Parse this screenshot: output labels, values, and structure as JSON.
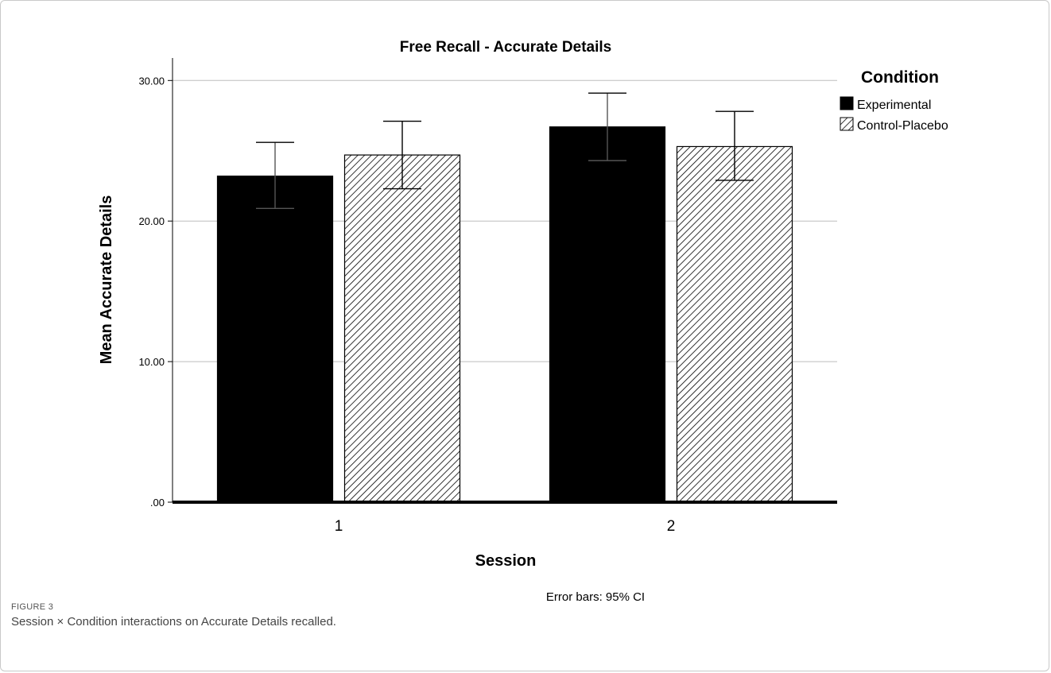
{
  "figure": {
    "label": "FIGURE 3",
    "caption": "Session × Condition interactions on Accurate Details recalled."
  },
  "colors": {
    "experimental": "#000000",
    "control": "#ffffff",
    "hatch": "#000000",
    "grid": "#bdbdbd"
  },
  "chart_data": {
    "type": "bar",
    "title": "Free Recall - Accurate Details",
    "xlabel": "Session",
    "ylabel": "Mean Accurate Details",
    "categories": [
      "1",
      "2"
    ],
    "ylim": [
      0,
      31.6
    ],
    "yticks": [
      0,
      10,
      20,
      30
    ],
    "ytick_labels": [
      ".00",
      "10.00",
      "20.00",
      "30.00"
    ],
    "grid": true,
    "legend": {
      "title": "Condition",
      "placement": "right"
    },
    "series": [
      {
        "name": "Experimental",
        "fill": "solid",
        "values": [
          23.2,
          26.7
        ],
        "ci_low": [
          20.9,
          24.3
        ],
        "ci_high": [
          25.6,
          29.1
        ]
      },
      {
        "name": "Control-Placebo",
        "fill": "hatched",
        "values": [
          24.7,
          25.3
        ],
        "ci_low": [
          22.3,
          22.9
        ],
        "ci_high": [
          27.1,
          27.8
        ]
      }
    ],
    "note": "Error bars: 95% CI"
  }
}
